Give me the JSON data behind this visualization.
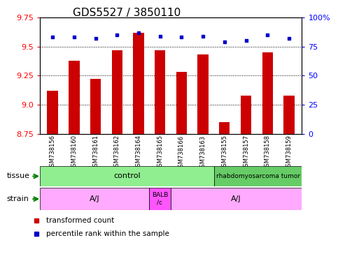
{
  "title": "GDS5527 / 3850110",
  "samples": [
    "GSM738156",
    "GSM738160",
    "GSM738161",
    "GSM738162",
    "GSM738164",
    "GSM738165",
    "GSM738166",
    "GSM738163",
    "GSM738155",
    "GSM738157",
    "GSM738158",
    "GSM738159"
  ],
  "bar_values": [
    9.12,
    9.38,
    9.22,
    9.47,
    9.62,
    9.47,
    9.28,
    9.43,
    8.85,
    9.08,
    9.45,
    9.08
  ],
  "dot_values": [
    83,
    83,
    82,
    85,
    87,
    84,
    83,
    84,
    79,
    80,
    85,
    82
  ],
  "ylim_left": [
    8.75,
    9.75
  ],
  "ylim_right": [
    0,
    100
  ],
  "yticks_left": [
    8.75,
    9.0,
    9.25,
    9.5,
    9.75
  ],
  "yticks_right": [
    0,
    25,
    50,
    75,
    100
  ],
  "bar_color": "#cc0000",
  "dot_color": "#0000cc",
  "bar_bottom": 8.75,
  "tissue_boundaries": [
    0,
    8,
    12
  ],
  "tissue_labels": [
    "control",
    "rhabdomyosarcoma tumor"
  ],
  "tissue_colors": [
    "#90ee90",
    "#66cc66"
  ],
  "strain_boundaries": [
    0,
    5,
    6,
    12
  ],
  "strain_labels": [
    "A/J",
    "BALB\n/c",
    "A/J"
  ],
  "strain_colors": [
    "#ffaaff",
    "#ff55ff",
    "#ffaaff"
  ],
  "title_fontsize": 11,
  "tick_fontsize": 8,
  "sample_fontsize": 6,
  "bar_width": 0.5
}
